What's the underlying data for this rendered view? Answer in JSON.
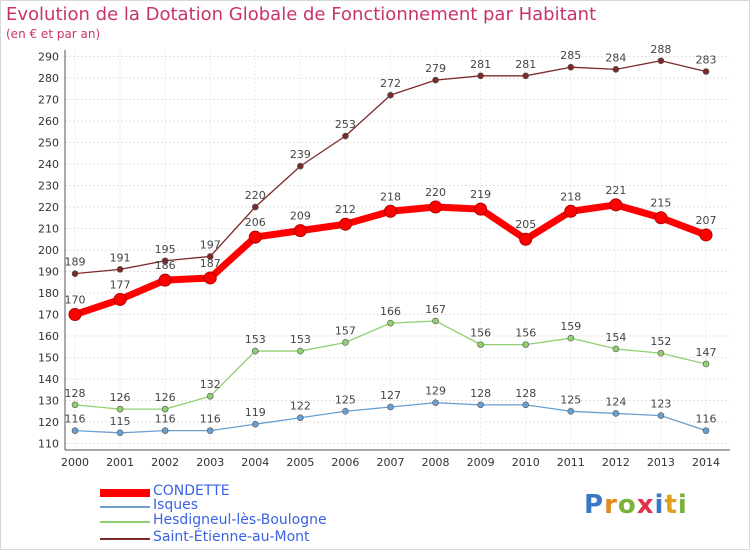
{
  "chart_data": {
    "type": "line",
    "title": "Evolution de la Dotation Globale de Fonctionnement par Habitant",
    "subtitle": "(en € et par an)",
    "xlabel": "",
    "ylabel": "",
    "ylim": [
      107,
      293
    ],
    "yticks": [
      110,
      120,
      130,
      140,
      150,
      160,
      170,
      180,
      190,
      200,
      210,
      220,
      230,
      240,
      250,
      260,
      270,
      280,
      290
    ],
    "x": [
      "2000",
      "2001",
      "2002",
      "2003",
      "2004",
      "2005",
      "2006",
      "2007",
      "2008",
      "2009",
      "2010",
      "2011",
      "2012",
      "2013",
      "2014"
    ],
    "grid": true,
    "legend_position": "bottom-left",
    "series": [
      {
        "name": "Saint-Étienne-au-Mont",
        "color": "#7a2a2a",
        "values": [
          189,
          191,
          195,
          197,
          220,
          239,
          253,
          272,
          279,
          281,
          281,
          285,
          284,
          288,
          283
        ]
      },
      {
        "name": "CONDETTE",
        "color": "#ff0000",
        "values": [
          170,
          177,
          186,
          187,
          206,
          209,
          212,
          218,
          220,
          219,
          205,
          218,
          221,
          215,
          207
        ]
      },
      {
        "name": "Hesdigneul-lès-Boulogne",
        "color": "#90d070",
        "values": [
          128,
          126,
          126,
          132,
          153,
          153,
          157,
          166,
          167,
          156,
          156,
          159,
          154,
          152,
          147
        ]
      },
      {
        "name": "Isques",
        "color": "#6aa0d0",
        "values": [
          116,
          115,
          116,
          116,
          119,
          122,
          125,
          127,
          129,
          128,
          128,
          125,
          124,
          123,
          116
        ]
      }
    ]
  },
  "legend": [
    "CONDETTE",
    "Isques",
    "Hesdigneul-lès-Boulogne",
    "Saint-Étienne-au-Mont"
  ],
  "logo_text": "Proxiti"
}
